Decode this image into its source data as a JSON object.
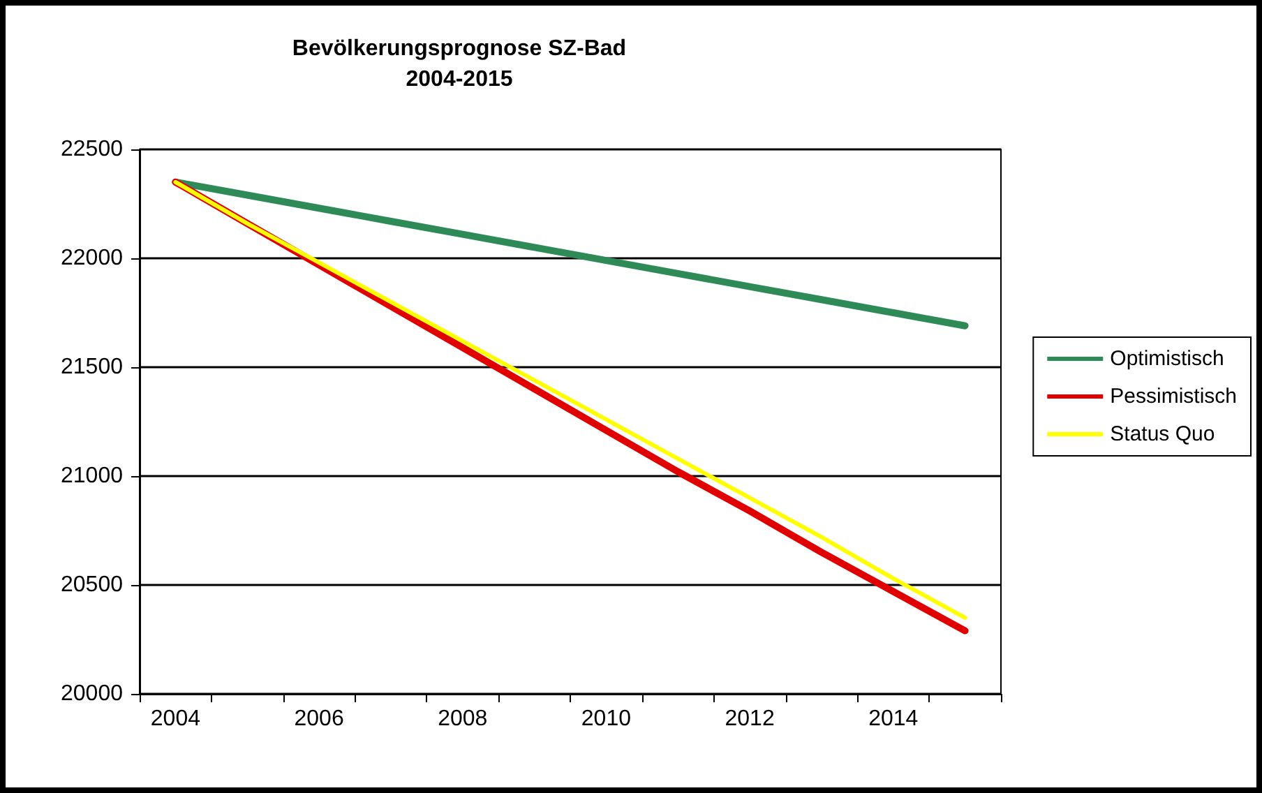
{
  "chart_data": {
    "type": "line",
    "title": "Bevölkerungsprognose SZ-Bad",
    "subtitle": "2004-2015",
    "categories": [
      "2004",
      null,
      "2006",
      null,
      "2008",
      null,
      "2010",
      null,
      "2012",
      null,
      "2014",
      null
    ],
    "series": [
      {
        "name": "Optimistisch",
        "color": "#2e8b57",
        "values": [
          22350,
          22290,
          22230,
          22170,
          22110,
          22050,
          21990,
          21930,
          21870,
          21810,
          21750,
          21690
        ]
      },
      {
        "name": "Pessimistisch",
        "color": "#e00000",
        "values": [
          22350,
          22160,
          21970,
          21780,
          21590,
          21400,
          21210,
          21020,
          20840,
          20650,
          20470,
          20290
        ]
      },
      {
        "name": "Status Quo",
        "color": "#ffff00",
        "values": [
          22350,
          22160,
          21980,
          21800,
          21620,
          21440,
          21260,
          21080,
          20900,
          20720,
          20530,
          20350
        ]
      }
    ],
    "ylim": [
      20000,
      22500
    ],
    "yticks": [
      20000,
      20500,
      21000,
      21500,
      22000,
      22500
    ],
    "grid": "y",
    "legend": "right",
    "marker": "none",
    "line_style": "solid"
  }
}
